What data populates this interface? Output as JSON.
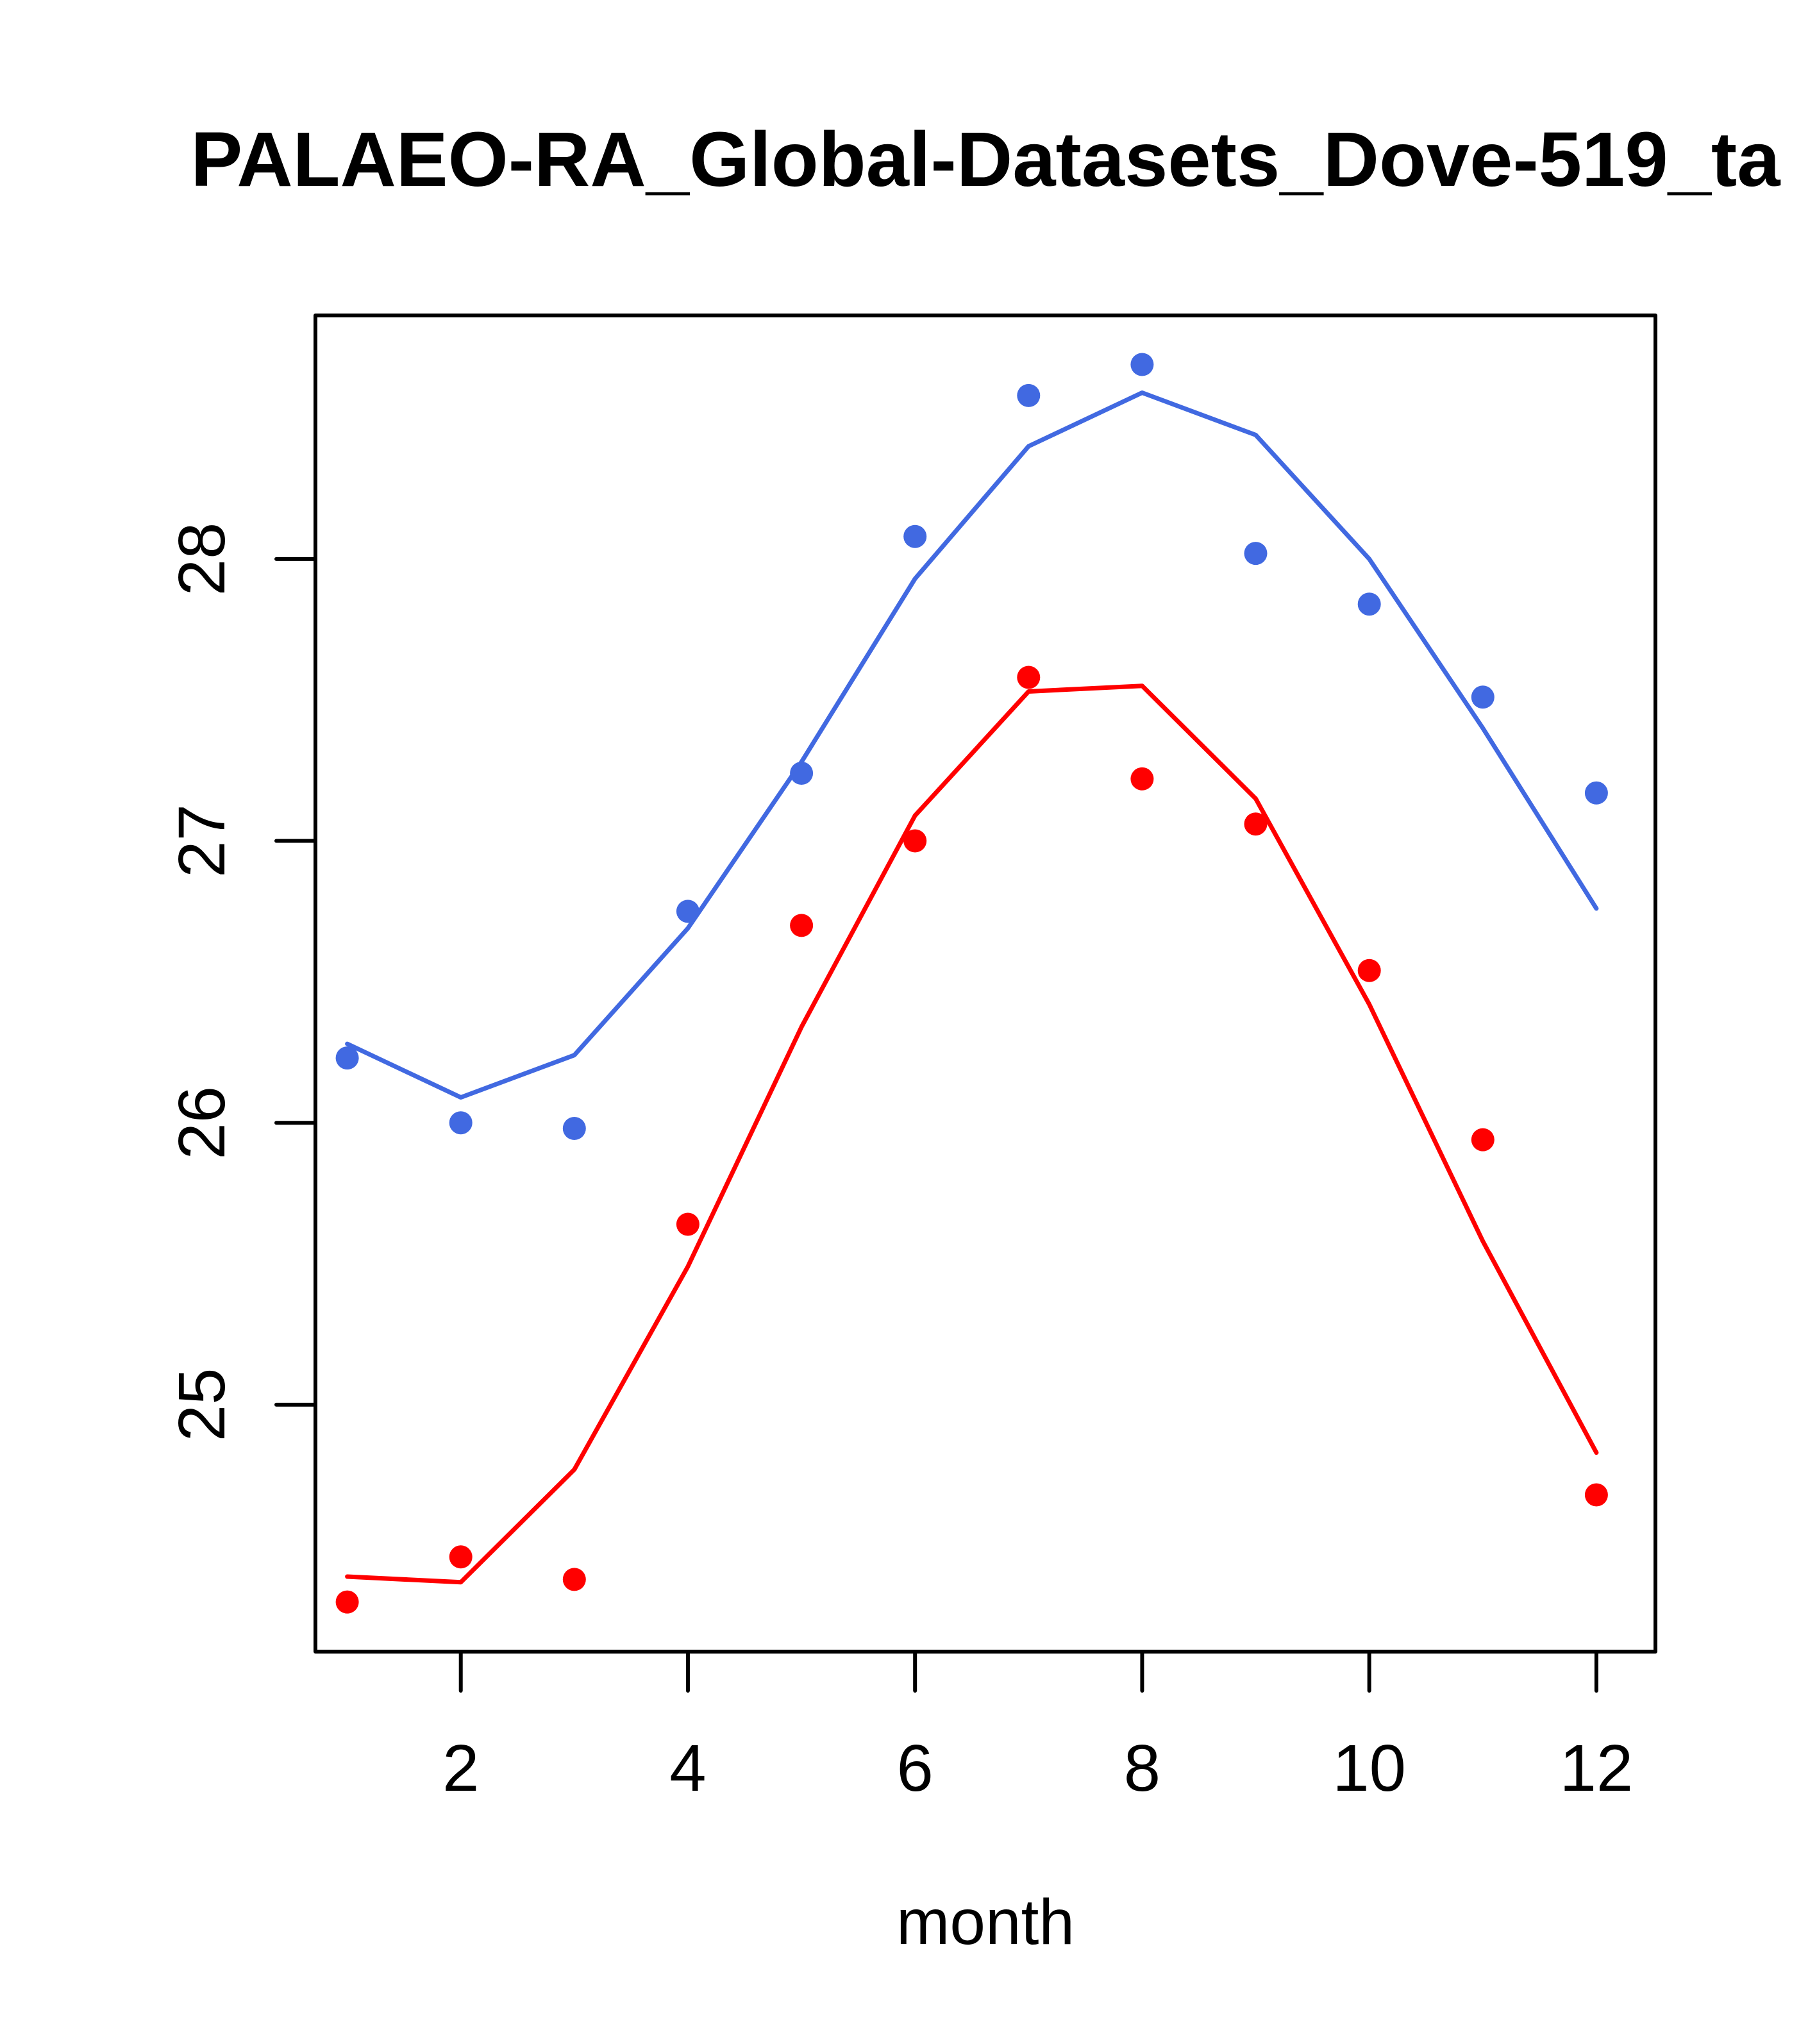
{
  "chart_data": {
    "type": "line",
    "title": "PALAEO-RA_Global-Datasets_Dove-519_ta",
    "xlabel": "month",
    "ylabel": "",
    "xlim": [
      0.72,
      12.52
    ],
    "ylim": [
      24.124,
      28.864
    ],
    "x_ticks": [
      2,
      4,
      6,
      8,
      10,
      12
    ],
    "x_tick_labels": [
      "2",
      "4",
      "6",
      "8",
      "10",
      "12"
    ],
    "y_ticks": [
      25,
      26,
      27,
      28
    ],
    "y_tick_labels": [
      "25",
      "26",
      "27",
      "28"
    ],
    "grid": false,
    "legend": null,
    "x": [
      1,
      2,
      3,
      4,
      5,
      6,
      7,
      8,
      9,
      10,
      11,
      12
    ],
    "series": [
      {
        "name": "blue-points",
        "kind": "points",
        "color": "#4169E1",
        "values": [
          26.23,
          26.0,
          25.98,
          26.75,
          27.24,
          28.08,
          28.58,
          28.69,
          28.02,
          27.84,
          27.51,
          27.17
        ]
      },
      {
        "name": "blue-line",
        "kind": "line",
        "color": "#4169E1",
        "values": [
          26.28,
          26.09,
          26.24,
          26.69,
          27.28,
          27.93,
          28.4,
          28.59,
          28.44,
          28.0,
          27.4,
          26.76
        ]
      },
      {
        "name": "red-points",
        "kind": "points",
        "color": "#FF0000",
        "values": [
          24.3,
          24.46,
          24.38,
          25.64,
          26.7,
          27.0,
          27.58,
          27.22,
          27.06,
          26.54,
          25.94,
          24.68
        ]
      },
      {
        "name": "red-line",
        "kind": "line",
        "color": "#FF0000",
        "values": [
          24.39,
          24.37,
          24.77,
          25.49,
          26.34,
          27.09,
          27.53,
          27.55,
          27.15,
          26.42,
          25.58,
          24.83
        ]
      }
    ]
  }
}
